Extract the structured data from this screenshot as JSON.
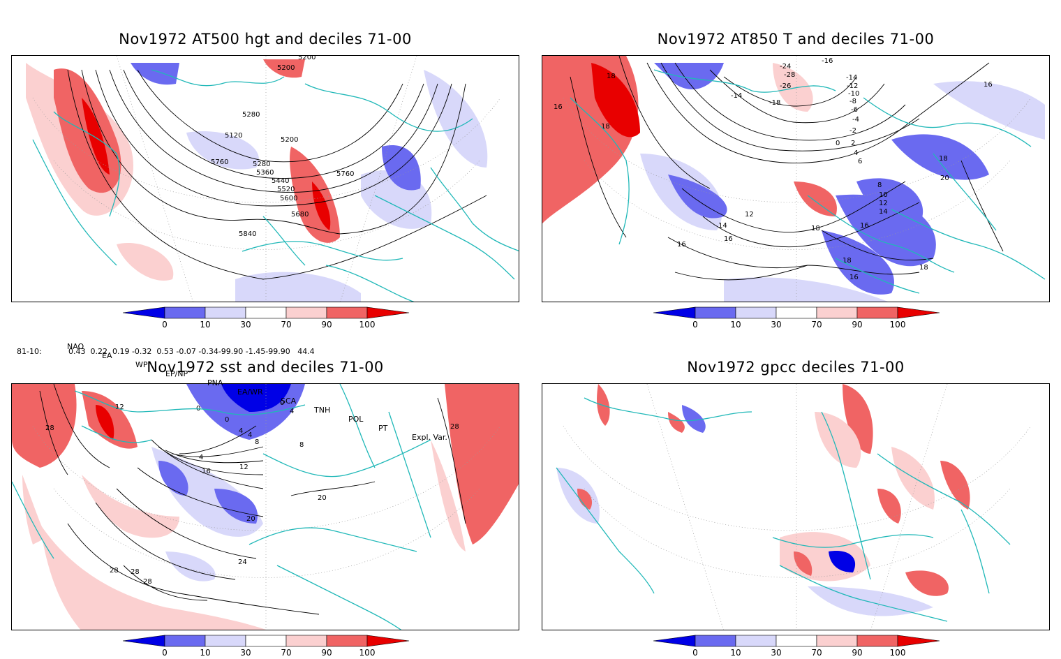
{
  "panels": [
    {
      "id": "p1",
      "title": "Nov1972 AT500 hgt and deciles 71-00",
      "contour_labels": [
        "5120",
        "5200",
        "5280",
        "5280",
        "5360",
        "5440",
        "5520",
        "5600",
        "5680",
        "5760",
        "5760",
        "5840",
        "5200",
        "5200"
      ]
    },
    {
      "id": "p2",
      "title": "Nov1972 AT850 T and deciles 71-00",
      "contour_labels": [
        "18",
        "16",
        "18",
        "-24",
        "-28",
        "-26",
        "-16",
        "-18",
        "-14",
        "-12",
        "-10",
        "-8",
        "-6",
        "-4",
        "-2",
        "0",
        "2",
        "4",
        "6",
        "8",
        "10",
        "12",
        "14",
        "16",
        "18",
        "20",
        "16",
        "12",
        "14",
        "16",
        "18",
        "16",
        "18",
        "16",
        "18",
        "-14",
        "16"
      ]
    },
    {
      "id": "p3",
      "title": "Nov1972 sst and deciles 71-00",
      "contour_labels": [
        "28",
        "12",
        "0",
        "0",
        "4",
        "4",
        "8",
        "4",
        "12",
        "16",
        "20",
        "24",
        "28",
        "28",
        "28",
        "20",
        "28",
        "8",
        "0",
        "4"
      ]
    },
    {
      "id": "p4",
      "title": "Nov1972 gpcc deciles 71-00",
      "contour_labels": []
    }
  ],
  "colorbar": {
    "ticks": [
      "0",
      "10",
      "30",
      "70",
      "90",
      "100"
    ],
    "colors": [
      "#0000e6",
      "#6a6af0",
      "#d8d8fa",
      "#ffffff",
      "#fbd0d0",
      "#f06464",
      "#e80000"
    ]
  },
  "indices": {
    "headers": [
      "NAO",
      "EA",
      "WP",
      "EP/NP",
      "PNA",
      "EA/WR",
      "SCA",
      "TNH",
      "POL",
      "PT",
      "Expl. Var."
    ],
    "row_label": "81-10:",
    "values_text": "0.43  0.22  0.19 -0.32  0.53 -0.07 -0.34-99.90 -1.45-99.90   44.4"
  }
}
